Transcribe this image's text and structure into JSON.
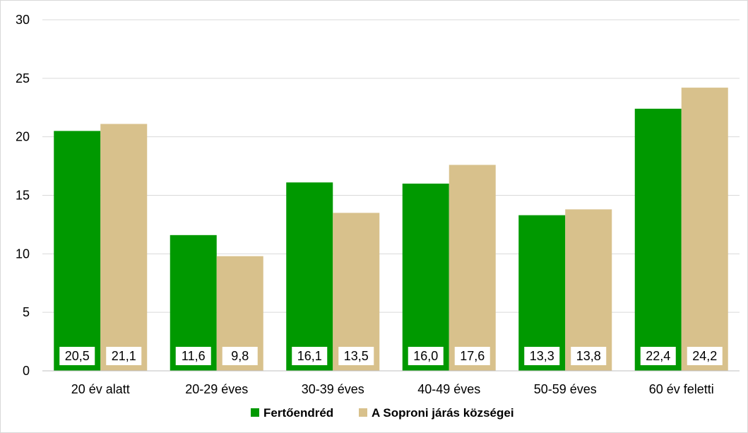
{
  "chart_data": {
    "type": "bar",
    "categories": [
      "20 év alatt",
      "20-29 éves",
      "30-39 éves",
      "40-49 éves",
      "50-59 éves",
      "60 év feletti"
    ],
    "series": [
      {
        "name": "Fertőendréd",
        "color": "#009900",
        "values": [
          20.5,
          11.6,
          16.1,
          16.0,
          13.3,
          22.4
        ],
        "labels": [
          "20,5",
          "11,6",
          "16,1",
          "16,0",
          "13,3",
          "22,4"
        ]
      },
      {
        "name": "A Soproni járás községei",
        "color": "#d8c18c",
        "values": [
          21.1,
          9.8,
          13.5,
          17.6,
          13.8,
          24.2
        ],
        "labels": [
          "21,1",
          "9,8",
          "13,5",
          "17,6",
          "13,8",
          "24,2"
        ]
      }
    ],
    "title": "",
    "xlabel": "",
    "ylabel": "",
    "ylim": [
      0,
      30
    ],
    "yticks": [
      0,
      5,
      10,
      15,
      20,
      25,
      30
    ],
    "grid": true,
    "legend_position": "bottom",
    "data_label_position": "inside-base"
  }
}
